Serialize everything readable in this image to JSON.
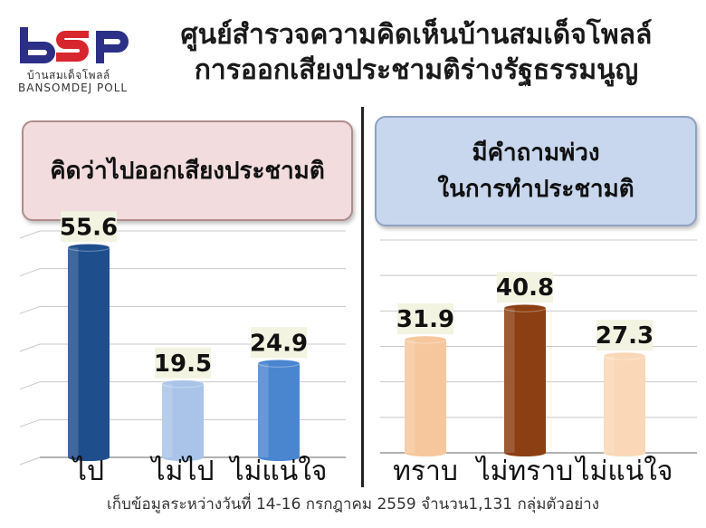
{
  "header": {
    "logo_thai": "บ้านสมเด็จโพลล์",
    "logo_en": "BANSOMDEJ POLL",
    "title_line1": "ศูนย์สำรวจความคิดเห็นบ้านสมเด็จโพลล์",
    "title_line2": "การออกเสียงประชามติร่างรัฐธรรมนูญ"
  },
  "colors": {
    "left_bars": [
      "#1f4e8c",
      "#a9c4e8",
      "#4a86d0"
    ],
    "right_bars": [
      "#f6c79c",
      "#8b3f12",
      "#fad7b6"
    ],
    "label_bg": "#f3f3e1"
  },
  "chart_data": [
    {
      "type": "bar",
      "title": "คิดว่าไปออกเสียงประชามติ",
      "categories": [
        "ไป",
        "ไม่ไป",
        "ไม่แน่ใจ"
      ],
      "values": [
        55.6,
        19.5,
        24.9
      ]
    },
    {
      "type": "bar",
      "title": "มีคำถามพ่วงในการทำประชามติ",
      "title_lines": [
        "มีคำถามพ่วง",
        "ในการทำประชามติ"
      ],
      "categories": [
        "ทราบ",
        "ไม่ทราบ",
        "ไม่แน่ใจ"
      ],
      "values": [
        31.9,
        40.8,
        27.3
      ]
    }
  ],
  "footer": "เก็บข้อมูลระหว่างวันที่ 14-16 กรกฎาคม 2559 จำนวน1,131 กลุ่มตัวอย่าง"
}
